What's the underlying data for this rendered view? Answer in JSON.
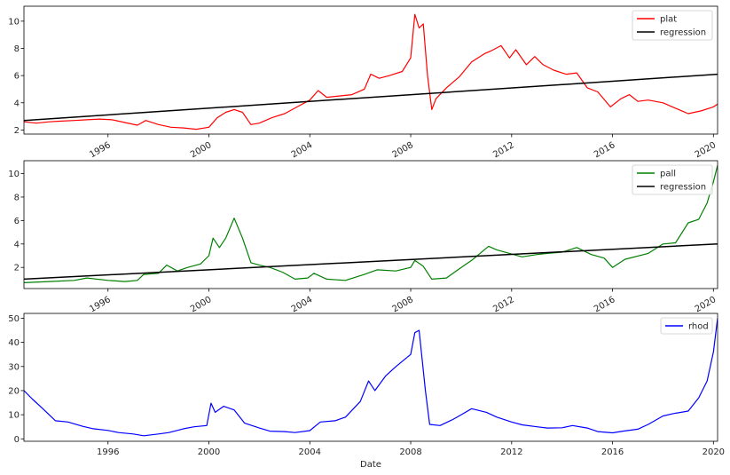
{
  "chart_data": [
    {
      "type": "line",
      "xlabel": "",
      "ylabel": "",
      "xlim": [
        "1992-09-01",
        "2020-03-01"
      ],
      "ylim": [
        1.7,
        11.1
      ],
      "yticks": [
        2,
        4,
        6,
        8,
        10
      ],
      "xticks": [
        "1996",
        "2000",
        "2004",
        "2008",
        "2012",
        "2016",
        "2020"
      ],
      "xtick_rotation": 30,
      "legend": "top-right",
      "series": [
        {
          "name": "plat",
          "color": "#ff0000",
          "points": [
            [
              "1992-09-01",
              2.6
            ],
            [
              "1993-03-01",
              2.5
            ],
            [
              "1993-09-01",
              2.6
            ],
            [
              "1994-03-01",
              2.65
            ],
            [
              "1994-09-01",
              2.7
            ],
            [
              "1995-03-01",
              2.75
            ],
            [
              "1995-09-01",
              2.8
            ],
            [
              "1996-03-01",
              2.75
            ],
            [
              "1996-09-01",
              2.55
            ],
            [
              "1997-03-01",
              2.35
            ],
            [
              "1997-07-01",
              2.7
            ],
            [
              "1998-01-01",
              2.4
            ],
            [
              "1998-07-01",
              2.2
            ],
            [
              "1999-01-01",
              2.15
            ],
            [
              "1999-07-01",
              2.05
            ],
            [
              "2000-01-01",
              2.2
            ],
            [
              "2000-05-01",
              2.9
            ],
            [
              "2000-09-01",
              3.3
            ],
            [
              "2001-01-01",
              3.5
            ],
            [
              "2001-05-01",
              3.3
            ],
            [
              "2001-09-01",
              2.4
            ],
            [
              "2002-01-01",
              2.5
            ],
            [
              "2002-07-01",
              2.9
            ],
            [
              "2003-01-01",
              3.2
            ],
            [
              "2003-07-01",
              3.7
            ],
            [
              "2004-01-01",
              4.2
            ],
            [
              "2004-05-01",
              4.9
            ],
            [
              "2004-09-01",
              4.4
            ],
            [
              "2005-03-01",
              4.5
            ],
            [
              "2005-09-01",
              4.6
            ],
            [
              "2006-03-01",
              5.0
            ],
            [
              "2006-06-01",
              6.1
            ],
            [
              "2006-10-01",
              5.8
            ],
            [
              "2007-03-01",
              6.0
            ],
            [
              "2007-09-01",
              6.3
            ],
            [
              "2008-01-01",
              7.3
            ],
            [
              "2008-03-01",
              10.5
            ],
            [
              "2008-05-01",
              9.5
            ],
            [
              "2008-07-01",
              9.8
            ],
            [
              "2008-09-01",
              6.0
            ],
            [
              "2008-11-01",
              3.5
            ],
            [
              "2009-01-01",
              4.3
            ],
            [
              "2009-06-01",
              5.1
            ],
            [
              "2009-12-01",
              5.9
            ],
            [
              "2010-06-01",
              7.0
            ],
            [
              "2010-12-01",
              7.6
            ],
            [
              "2011-03-01",
              7.8
            ],
            [
              "2011-08-01",
              8.2
            ],
            [
              "2011-12-01",
              7.3
            ],
            [
              "2012-03-01",
              7.9
            ],
            [
              "2012-08-01",
              6.8
            ],
            [
              "2012-12-01",
              7.4
            ],
            [
              "2013-04-01",
              6.8
            ],
            [
              "2013-09-01",
              6.4
            ],
            [
              "2014-03-01",
              6.1
            ],
            [
              "2014-08-01",
              6.2
            ],
            [
              "2015-01-01",
              5.1
            ],
            [
              "2015-06-01",
              4.8
            ],
            [
              "2015-12-01",
              3.7
            ],
            [
              "2016-05-01",
              4.3
            ],
            [
              "2016-09-01",
              4.6
            ],
            [
              "2017-01-01",
              4.1
            ],
            [
              "2017-06-01",
              4.2
            ],
            [
              "2018-01-01",
              4.0
            ],
            [
              "2018-07-01",
              3.6
            ],
            [
              "2019-01-01",
              3.2
            ],
            [
              "2019-07-01",
              3.4
            ],
            [
              "2020-01-01",
              3.7
            ],
            [
              "2020-03-01",
              3.9
            ]
          ]
        },
        {
          "name": "regression",
          "color": "#000000",
          "points": [
            [
              "1992-09-01",
              2.7
            ],
            [
              "2020-03-01",
              6.1
            ]
          ]
        }
      ]
    },
    {
      "type": "line",
      "xlabel": "",
      "ylabel": "",
      "xlim": [
        "1992-09-01",
        "2020-03-01"
      ],
      "ylim": [
        0.2,
        11.1
      ],
      "yticks": [
        2,
        4,
        6,
        8,
        10
      ],
      "xticks": [
        "1996",
        "2000",
        "2004",
        "2008",
        "2012",
        "2016",
        "2020"
      ],
      "xtick_rotation": 30,
      "legend": "top-right",
      "series": [
        {
          "name": "pall",
          "color": "#008000",
          "points": [
            [
              "1992-09-01",
              0.7
            ],
            [
              "1993-09-01",
              0.8
            ],
            [
              "1994-09-01",
              0.9
            ],
            [
              "1995-03-01",
              1.1
            ],
            [
              "1996-01-01",
              0.9
            ],
            [
              "1996-09-01",
              0.8
            ],
            [
              "1997-03-01",
              0.9
            ],
            [
              "1997-06-01",
              1.4
            ],
            [
              "1998-01-01",
              1.5
            ],
            [
              "1998-05-01",
              2.2
            ],
            [
              "1998-10-01",
              1.7
            ],
            [
              "1999-03-01",
              2.0
            ],
            [
              "1999-09-01",
              2.3
            ],
            [
              "2000-01-01",
              3.0
            ],
            [
              "2000-03-01",
              4.5
            ],
            [
              "2000-06-01",
              3.7
            ],
            [
              "2000-09-01",
              4.5
            ],
            [
              "2001-01-01",
              6.2
            ],
            [
              "2001-05-01",
              4.5
            ],
            [
              "2001-09-01",
              2.4
            ],
            [
              "2002-01-01",
              2.2
            ],
            [
              "2002-06-01",
              2.0
            ],
            [
              "2002-12-01",
              1.6
            ],
            [
              "2003-06-01",
              1.0
            ],
            [
              "2003-12-01",
              1.1
            ],
            [
              "2004-03-01",
              1.5
            ],
            [
              "2004-09-01",
              1.0
            ],
            [
              "2005-06-01",
              0.9
            ],
            [
              "2006-03-01",
              1.4
            ],
            [
              "2006-09-01",
              1.8
            ],
            [
              "2007-06-01",
              1.7
            ],
            [
              "2008-01-01",
              2.0
            ],
            [
              "2008-03-01",
              2.6
            ],
            [
              "2008-07-01",
              2.1
            ],
            [
              "2008-11-01",
              1.0
            ],
            [
              "2009-06-01",
              1.1
            ],
            [
              "2010-01-01",
              2.0
            ],
            [
              "2010-06-01",
              2.6
            ],
            [
              "2011-02-01",
              3.8
            ],
            [
              "2011-06-01",
              3.5
            ],
            [
              "2011-12-01",
              3.2
            ],
            [
              "2012-06-01",
              2.9
            ],
            [
              "2013-01-01",
              3.1
            ],
            [
              "2013-06-01",
              3.2
            ],
            [
              "2014-01-01",
              3.3
            ],
            [
              "2014-08-01",
              3.7
            ],
            [
              "2015-03-01",
              3.1
            ],
            [
              "2015-09-01",
              2.8
            ],
            [
              "2016-01-01",
              2.0
            ],
            [
              "2016-07-01",
              2.7
            ],
            [
              "2017-06-01",
              3.2
            ],
            [
              "2018-01-01",
              4.0
            ],
            [
              "2018-07-01",
              4.1
            ],
            [
              "2019-01-01",
              5.8
            ],
            [
              "2019-06-01",
              6.1
            ],
            [
              "2019-10-01",
              7.5
            ],
            [
              "2020-01-01",
              9.3
            ],
            [
              "2020-03-01",
              10.7
            ]
          ]
        },
        {
          "name": "regression",
          "color": "#000000",
          "points": [
            [
              "1992-09-01",
              1.0
            ],
            [
              "2020-03-01",
              4.0
            ]
          ]
        }
      ]
    },
    {
      "type": "line",
      "xlabel": "Date",
      "ylabel": "",
      "xlim": [
        "1992-09-01",
        "2020-03-01"
      ],
      "ylim": [
        -1,
        52
      ],
      "yticks": [
        0,
        10,
        20,
        30,
        40,
        50
      ],
      "xticks": [
        "1996",
        "2000",
        "2004",
        "2008",
        "2012",
        "2016",
        "2020"
      ],
      "xtick_rotation": 0,
      "legend": "top-right",
      "series": [
        {
          "name": "rhod",
          "color": "#0000ff",
          "points": [
            [
              "1992-09-01",
              20.0
            ],
            [
              "1993-01-01",
              16.5
            ],
            [
              "1993-06-01",
              12.5
            ],
            [
              "1993-12-01",
              7.5
            ],
            [
              "1994-06-01",
              7.0
            ],
            [
              "1995-01-01",
              5.2
            ],
            [
              "1995-06-01",
              4.2
            ],
            [
              "1996-01-01",
              3.5
            ],
            [
              "1996-06-01",
              2.6
            ],
            [
              "1997-01-01",
              2.0
            ],
            [
              "1997-06-01",
              1.3
            ],
            [
              "1998-01-01",
              2.0
            ],
            [
              "1998-06-01",
              2.6
            ],
            [
              "1999-01-01",
              4.2
            ],
            [
              "1999-06-01",
              5.0
            ],
            [
              "1999-12-01",
              5.5
            ],
            [
              "2000-02-01",
              14.8
            ],
            [
              "2000-04-01",
              11.0
            ],
            [
              "2000-08-01",
              13.5
            ],
            [
              "2001-01-01",
              12.0
            ],
            [
              "2001-06-01",
              6.5
            ],
            [
              "2002-01-01",
              4.5
            ],
            [
              "2002-06-01",
              3.2
            ],
            [
              "2003-01-01",
              3.0
            ],
            [
              "2003-06-01",
              2.6
            ],
            [
              "2004-01-01",
              3.4
            ],
            [
              "2004-06-01",
              7.0
            ],
            [
              "2005-01-01",
              7.5
            ],
            [
              "2005-06-01",
              9.0
            ],
            [
              "2006-01-01",
              15.5
            ],
            [
              "2006-05-01",
              24.0
            ],
            [
              "2006-08-01",
              20.0
            ],
            [
              "2007-01-01",
              26.0
            ],
            [
              "2007-06-01",
              30.0
            ],
            [
              "2008-01-01",
              35.0
            ],
            [
              "2008-03-01",
              44.0
            ],
            [
              "2008-05-01",
              45.0
            ],
            [
              "2008-08-01",
              20.0
            ],
            [
              "2008-10-01",
              6.0
            ],
            [
              "2009-03-01",
              5.5
            ],
            [
              "2009-09-01",
              8.0
            ],
            [
              "2010-01-01",
              10.0
            ],
            [
              "2010-06-01",
              12.5
            ],
            [
              "2011-01-01",
              11.0
            ],
            [
              "2011-06-01",
              9.0
            ],
            [
              "2012-01-01",
              7.0
            ],
            [
              "2012-06-01",
              5.8
            ],
            [
              "2013-01-01",
              5.0
            ],
            [
              "2013-06-01",
              4.5
            ],
            [
              "2014-01-01",
              4.6
            ],
            [
              "2014-06-01",
              5.5
            ],
            [
              "2015-01-01",
              4.5
            ],
            [
              "2015-06-01",
              3.0
            ],
            [
              "2016-01-01",
              2.5
            ],
            [
              "2016-06-01",
              3.2
            ],
            [
              "2017-01-01",
              4.0
            ],
            [
              "2017-06-01",
              6.0
            ],
            [
              "2018-01-01",
              9.5
            ],
            [
              "2018-06-01",
              10.5
            ],
            [
              "2019-01-01",
              11.5
            ],
            [
              "2019-06-01",
              17.0
            ],
            [
              "2019-10-01",
              24.0
            ],
            [
              "2020-01-01",
              36.0
            ],
            [
              "2020-03-01",
              50.0
            ]
          ]
        }
      ]
    }
  ]
}
